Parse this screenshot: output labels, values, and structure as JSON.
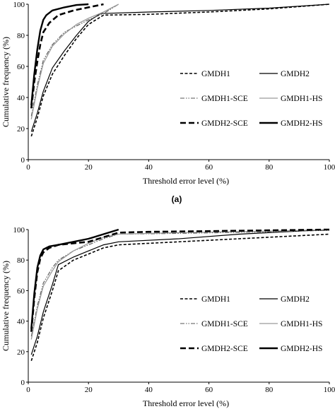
{
  "chart_data": [
    {
      "type": "line",
      "panel_label": "(a)",
      "xlabel": "Threshold error level (%)",
      "ylabel": "Cumulative frequency (%)",
      "xlim": [
        0,
        100
      ],
      "ylim": [
        0,
        100
      ],
      "xticks": [
        "0",
        "20",
        "40",
        "60",
        "80",
        "100"
      ],
      "yticks": [
        "0",
        "20",
        "40",
        "60",
        "80",
        "100"
      ],
      "grid": false,
      "legend": "right, inside plot, 3 rows x 2 columns",
      "series": [
        {
          "name": "GMDH1",
          "style": "short-dash",
          "color": "#000000",
          "points": [
            [
              1,
              15
            ],
            [
              3,
              27
            ],
            [
              5,
              41
            ],
            [
              8,
              55
            ],
            [
              12,
              67
            ],
            [
              16,
              78
            ],
            [
              20,
              87
            ],
            [
              25,
              93
            ],
            [
              40,
              93.5
            ],
            [
              60,
              95
            ],
            [
              80,
              97
            ],
            [
              100,
              100
            ]
          ]
        },
        {
          "name": "GMDH2",
          "style": "solid-thin",
          "color": "#000000",
          "points": [
            [
              1,
              18
            ],
            [
              3,
              30
            ],
            [
              5,
              44
            ],
            [
              8,
              59
            ],
            [
              12,
              70
            ],
            [
              16,
              80
            ],
            [
              20,
              89
            ],
            [
              24,
              94
            ],
            [
              40,
              95
            ],
            [
              60,
              96
            ],
            [
              80,
              97.5
            ],
            [
              100,
              100
            ]
          ]
        },
        {
          "name": "GMDH1-SCE",
          "style": "dash-dot-dot",
          "color": "#555555",
          "points": [
            [
              1,
              28
            ],
            [
              3,
              48
            ],
            [
              5,
              64
            ],
            [
              8,
              74
            ],
            [
              12,
              82
            ],
            [
              16,
              86
            ],
            [
              20,
              90
            ],
            [
              25,
              94
            ],
            [
              30,
              100
            ]
          ]
        },
        {
          "name": "GMDH1-HS",
          "style": "solid-gray",
          "color": "#9a9a9a",
          "points": [
            [
              1,
              26
            ],
            [
              3,
              46
            ],
            [
              5,
              62
            ],
            [
              8,
              73
            ],
            [
              12,
              81
            ],
            [
              16,
              87
            ],
            [
              20,
              91
            ],
            [
              25,
              95
            ],
            [
              30,
              100
            ]
          ]
        },
        {
          "name": "GMDH2-SCE",
          "style": "long-dash-thick",
          "color": "#000000",
          "points": [
            [
              1,
              33
            ],
            [
              2,
              50
            ],
            [
              3,
              63
            ],
            [
              4,
              74
            ],
            [
              5,
              82
            ],
            [
              7,
              88
            ],
            [
              10,
              93
            ],
            [
              15,
              96
            ],
            [
              20,
              98
            ],
            [
              25,
              100
            ]
          ]
        },
        {
          "name": "GMDH2-HS",
          "style": "solid-thick",
          "color": "#000000",
          "points": [
            [
              1,
              35
            ],
            [
              2,
              55
            ],
            [
              3,
              71
            ],
            [
              4,
              83
            ],
            [
              5,
              90
            ],
            [
              6,
              93
            ],
            [
              8,
              96
            ],
            [
              12,
              98
            ],
            [
              16,
              99.5
            ],
            [
              20,
              100
            ]
          ]
        }
      ]
    },
    {
      "type": "line",
      "panel_label": "(b)",
      "xlabel": "Threshold error level (%)",
      "ylabel": "Cumulative frequency (%)",
      "xlim": [
        0,
        100
      ],
      "ylim": [
        0,
        100
      ],
      "xticks": [
        "0",
        "20",
        "40",
        "60",
        "80",
        "100"
      ],
      "yticks": [
        "0",
        "20",
        "40",
        "60",
        "80",
        "100"
      ],
      "grid": false,
      "legend": "right, inside plot, 3 rows x 2 columns",
      "series": [
        {
          "name": "GMDH1",
          "style": "short-dash",
          "color": "#000000",
          "points": [
            [
              1,
              14
            ],
            [
              3,
              26
            ],
            [
              5,
              42
            ],
            [
              8,
              60
            ],
            [
              10,
              73
            ],
            [
              15,
              80
            ],
            [
              20,
              84
            ],
            [
              25,
              88
            ],
            [
              30,
              90
            ],
            [
              50,
              92
            ],
            [
              70,
              94
            ],
            [
              100,
              97
            ]
          ]
        },
        {
          "name": "GMDH2",
          "style": "solid-thin",
          "color": "#000000",
          "points": [
            [
              1,
              18
            ],
            [
              3,
              30
            ],
            [
              5,
              46
            ],
            [
              8,
              64
            ],
            [
              10,
              77
            ],
            [
              15,
              82
            ],
            [
              20,
              86
            ],
            [
              25,
              90
            ],
            [
              30,
              92
            ],
            [
              50,
              94
            ],
            [
              70,
              97
            ],
            [
              100,
              100
            ]
          ]
        },
        {
          "name": "GMDH1-SCE",
          "style": "dash-dot-dot",
          "color": "#555555",
          "points": [
            [
              1,
              30
            ],
            [
              3,
              50
            ],
            [
              5,
              65
            ],
            [
              8,
              75
            ],
            [
              10,
              80
            ],
            [
              15,
              86
            ],
            [
              20,
              90
            ],
            [
              25,
              94
            ],
            [
              30,
              97
            ],
            [
              50,
              97.5
            ],
            [
              80,
              98.5
            ],
            [
              100,
              99.5
            ]
          ]
        },
        {
          "name": "GMDH1-HS",
          "style": "solid-gray",
          "color": "#9a9a9a",
          "points": [
            [
              1,
              28
            ],
            [
              3,
              48
            ],
            [
              5,
              63
            ],
            [
              8,
              73
            ],
            [
              10,
              79
            ],
            [
              15,
              86
            ],
            [
              20,
              91
            ],
            [
              25,
              95
            ],
            [
              30,
              97
            ],
            [
              50,
              98
            ],
            [
              80,
              99
            ],
            [
              100,
              100
            ]
          ]
        },
        {
          "name": "GMDH2-SCE",
          "style": "long-dash-thick",
          "color": "#000000",
          "points": [
            [
              1,
              33
            ],
            [
              2,
              55
            ],
            [
              3,
              72
            ],
            [
              4,
              81
            ],
            [
              5,
              85
            ],
            [
              7,
              88
            ],
            [
              10,
              90
            ],
            [
              15,
              91
            ],
            [
              20,
              92
            ],
            [
              25,
              95
            ],
            [
              30,
              98
            ],
            [
              40,
              98.5
            ],
            [
              60,
              99
            ],
            [
              80,
              99.5
            ],
            [
              100,
              100
            ]
          ]
        },
        {
          "name": "GMDH2-HS",
          "style": "solid-thick",
          "color": "#000000",
          "points": [
            [
              1,
              35
            ],
            [
              2,
              58
            ],
            [
              3,
              75
            ],
            [
              4,
              83
            ],
            [
              5,
              87
            ],
            [
              7,
              89
            ],
            [
              10,
              90
            ],
            [
              15,
              92
            ],
            [
              20,
              94
            ],
            [
              25,
              97
            ],
            [
              30,
              100
            ]
          ]
        }
      ]
    }
  ]
}
